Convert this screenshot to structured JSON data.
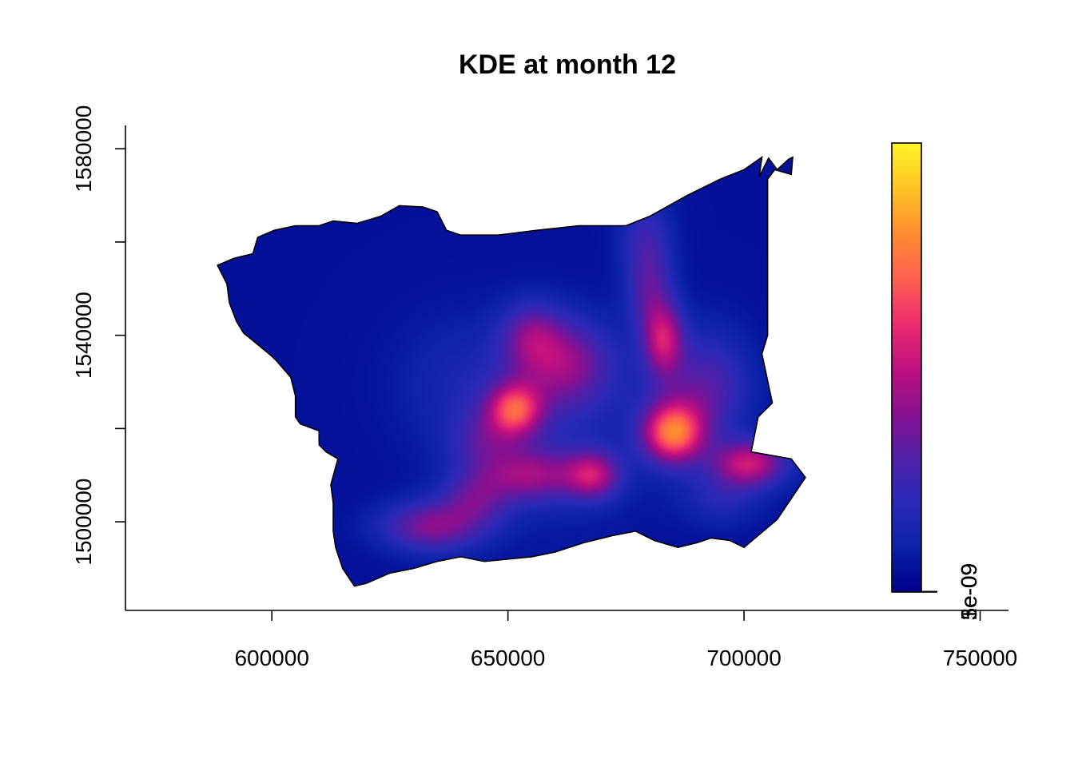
{
  "chart_data": {
    "type": "heatmap",
    "title": "KDE at month 12",
    "xlabel": "",
    "ylabel": "",
    "xlim": [
      569000,
      756000
    ],
    "ylim": [
      1481000,
      1585000
    ],
    "x_ticks": [
      600000,
      650000,
      700000,
      750000
    ],
    "y_ticks": [
      1500000,
      1520000,
      1540000,
      1560000,
      1580000
    ],
    "y_tick_labels": [
      {
        "value": 1500000,
        "label": "1500000"
      },
      {
        "value": 1540000,
        "label": "1540000"
      },
      {
        "value": 1580000,
        "label": "1580000"
      }
    ],
    "grid": false,
    "colorbar": {
      "placement": "right",
      "min": 0,
      "max": 6.2e-06,
      "ticks": [
        1e-09,
        2e-09,
        3e-09,
        4e-09,
        5e-09,
        6e-09
      ],
      "tick_labels": [
        {
          "value": 1e-09,
          "label": "1e-09"
        },
        {
          "value": 3e-09,
          "label": "3e-09"
        },
        {
          "value": 5e-09,
          "label": "5e-09"
        }
      ],
      "palette": [
        "#00008B",
        "#0A22A8",
        "#2A2AB8",
        "#5020A8",
        "#8A1090",
        "#C01080",
        "#EE2E70",
        "#FE6150",
        "#FF8C30",
        "#FFC424",
        "#FFF429"
      ]
    },
    "region_outline": [
      [
        588500,
        1555000
      ],
      [
        592000,
        1556500
      ],
      [
        596000,
        1557500
      ],
      [
        597000,
        1561000
      ],
      [
        600500,
        1562500
      ],
      [
        605000,
        1563500
      ],
      [
        610000,
        1563500
      ],
      [
        613000,
        1564500
      ],
      [
        618000,
        1564000
      ],
      [
        623000,
        1565500
      ],
      [
        627000,
        1567800
      ],
      [
        632000,
        1567500
      ],
      [
        635000,
        1566500
      ],
      [
        637000,
        1562500
      ],
      [
        640000,
        1561500
      ],
      [
        648000,
        1561500
      ],
      [
        656000,
        1562500
      ],
      [
        665000,
        1563500
      ],
      [
        670000,
        1563500
      ],
      [
        675000,
        1563500
      ],
      [
        680000,
        1565500
      ],
      [
        688000,
        1570000
      ],
      [
        695000,
        1573500
      ],
      [
        700000,
        1575500
      ],
      [
        703800,
        1578200
      ],
      [
        703200,
        1574000
      ],
      [
        705200,
        1578000
      ],
      [
        707000,
        1575500
      ],
      [
        709500,
        1577800
      ],
      [
        710300,
        1578200
      ],
      [
        710000,
        1574500
      ],
      [
        706500,
        1575500
      ],
      [
        705000,
        1573500
      ],
      [
        705000,
        1564000
      ],
      [
        705000,
        1555000
      ],
      [
        705000,
        1540000
      ],
      [
        703800,
        1536000
      ],
      [
        706000,
        1525500
      ],
      [
        703000,
        1522500
      ],
      [
        701500,
        1515000
      ],
      [
        710000,
        1513500
      ],
      [
        713000,
        1509500
      ],
      [
        710000,
        1505000
      ],
      [
        707000,
        1500500
      ],
      [
        703500,
        1497500
      ],
      [
        700000,
        1494500
      ],
      [
        697000,
        1496000
      ],
      [
        693000,
        1496500
      ],
      [
        690000,
        1495500
      ],
      [
        686000,
        1494500
      ],
      [
        681000,
        1496000
      ],
      [
        677000,
        1498000
      ],
      [
        672000,
        1497000
      ],
      [
        666000,
        1495500
      ],
      [
        660000,
        1493500
      ],
      [
        655000,
        1492500
      ],
      [
        650000,
        1492000
      ],
      [
        645000,
        1491500
      ],
      [
        640000,
        1492500
      ],
      [
        635000,
        1491500
      ],
      [
        630000,
        1490000
      ],
      [
        625000,
        1489000
      ],
      [
        620000,
        1486800
      ],
      [
        617500,
        1486200
      ],
      [
        615000,
        1490000
      ],
      [
        613500,
        1494500
      ],
      [
        613000,
        1498000
      ],
      [
        613000,
        1504000
      ],
      [
        612500,
        1508000
      ],
      [
        614000,
        1513500
      ],
      [
        611500,
        1515000
      ],
      [
        610000,
        1516500
      ],
      [
        610000,
        1519500
      ],
      [
        606000,
        1521000
      ],
      [
        605000,
        1522500
      ],
      [
        605000,
        1527000
      ],
      [
        604000,
        1531000
      ],
      [
        601000,
        1534500
      ],
      [
        600000,
        1535500
      ],
      [
        597000,
        1538000
      ],
      [
        594000,
        1540500
      ],
      [
        592500,
        1543000
      ],
      [
        591000,
        1547000
      ],
      [
        590500,
        1551000
      ],
      [
        588500,
        1555000
      ]
    ],
    "density_components": [
      {
        "x": 685000,
        "y": 1519000,
        "amplitude": 4e-06,
        "sigma_x": 4500,
        "sigma_y": 4500
      },
      {
        "x": 683000,
        "y": 1539000,
        "amplitude": 2.6e-06,
        "sigma_x": 3000,
        "sigma_y": 5500
      },
      {
        "x": 651500,
        "y": 1524000,
        "amplitude": 3.2e-06,
        "sigma_x": 4000,
        "sigma_y": 4000
      },
      {
        "x": 662000,
        "y": 1534000,
        "amplitude": 2e-06,
        "sigma_x": 7000,
        "sigma_y": 6500
      },
      {
        "x": 668000,
        "y": 1510000,
        "amplitude": 2.4e-06,
        "sigma_x": 4000,
        "sigma_y": 3500
      },
      {
        "x": 655000,
        "y": 1510000,
        "amplitude": 2e-06,
        "sigma_x": 7000,
        "sigma_y": 4000
      },
      {
        "x": 634000,
        "y": 1499000,
        "amplitude": 2.1e-06,
        "sigma_x": 7500,
        "sigma_y": 3800
      },
      {
        "x": 643000,
        "y": 1505000,
        "amplitude": 1.4e-06,
        "sigma_x": 5000,
        "sigma_y": 4000
      },
      {
        "x": 701000,
        "y": 1512500,
        "amplitude": 2.9e-06,
        "sigma_x": 5500,
        "sigma_y": 3500
      },
      {
        "x": 680000,
        "y": 1550000,
        "amplitude": 1.5e-06,
        "sigma_x": 3500,
        "sigma_y": 7000
      },
      {
        "x": 679000,
        "y": 1562000,
        "amplitude": 9e-07,
        "sigma_x": 4000,
        "sigma_y": 6000
      },
      {
        "x": 655000,
        "y": 1540000,
        "amplitude": 1.5e-06,
        "sigma_x": 4500,
        "sigma_y": 5000
      },
      {
        "x": 645000,
        "y": 1517000,
        "amplitude": 1.1e-06,
        "sigma_x": 5000,
        "sigma_y": 5000
      },
      {
        "x": 690000,
        "y": 1526000,
        "amplitude": 1e-06,
        "sigma_x": 7000,
        "sigma_y": 7000
      },
      {
        "x": 693000,
        "y": 1532000,
        "amplitude": 8e-07,
        "sigma_x": 6000,
        "sigma_y": 8000
      },
      {
        "x": 695000,
        "y": 1505000,
        "amplitude": 8e-07,
        "sigma_x": 6000,
        "sigma_y": 4000
      },
      {
        "x": 640000,
        "y": 1530000,
        "amplitude": 5e-07,
        "sigma_x": 10000,
        "sigma_y": 10000
      },
      {
        "x": 660000,
        "y": 1520000,
        "amplitude": 6e-07,
        "sigma_x": 14000,
        "sigma_y": 14000
      }
    ],
    "density_baseline": 3e-07
  }
}
